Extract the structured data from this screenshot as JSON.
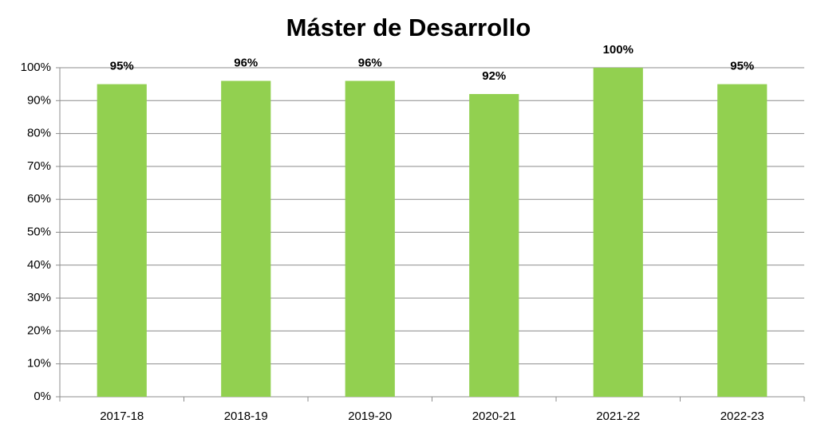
{
  "chart_data": {
    "type": "bar",
    "title": "Máster de Desarrollo",
    "categories": [
      "2017-18",
      "2018-19",
      "2019-20",
      "2020-21",
      "2021-22",
      "2022-23"
    ],
    "values": [
      95,
      96,
      96,
      92,
      100,
      95
    ],
    "value_labels": [
      "95%",
      "96%",
      "96%",
      "92%",
      "100%",
      "95%"
    ],
    "color": "#92d050",
    "ylim": [
      0,
      100
    ],
    "yticks": [
      {
        "value": 0,
        "label": "0%"
      },
      {
        "value": 10,
        "label": "10%"
      },
      {
        "value": 20,
        "label": "20%"
      },
      {
        "value": 30,
        "label": "30%"
      },
      {
        "value": 40,
        "label": "40%"
      },
      {
        "value": 50,
        "label": "50%"
      },
      {
        "value": 60,
        "label": "60%"
      },
      {
        "value": 70,
        "label": "70%"
      },
      {
        "value": 80,
        "label": "80%"
      },
      {
        "value": 90,
        "label": "90%"
      },
      {
        "value": 100,
        "label": "100%"
      }
    ],
    "grid": true
  }
}
